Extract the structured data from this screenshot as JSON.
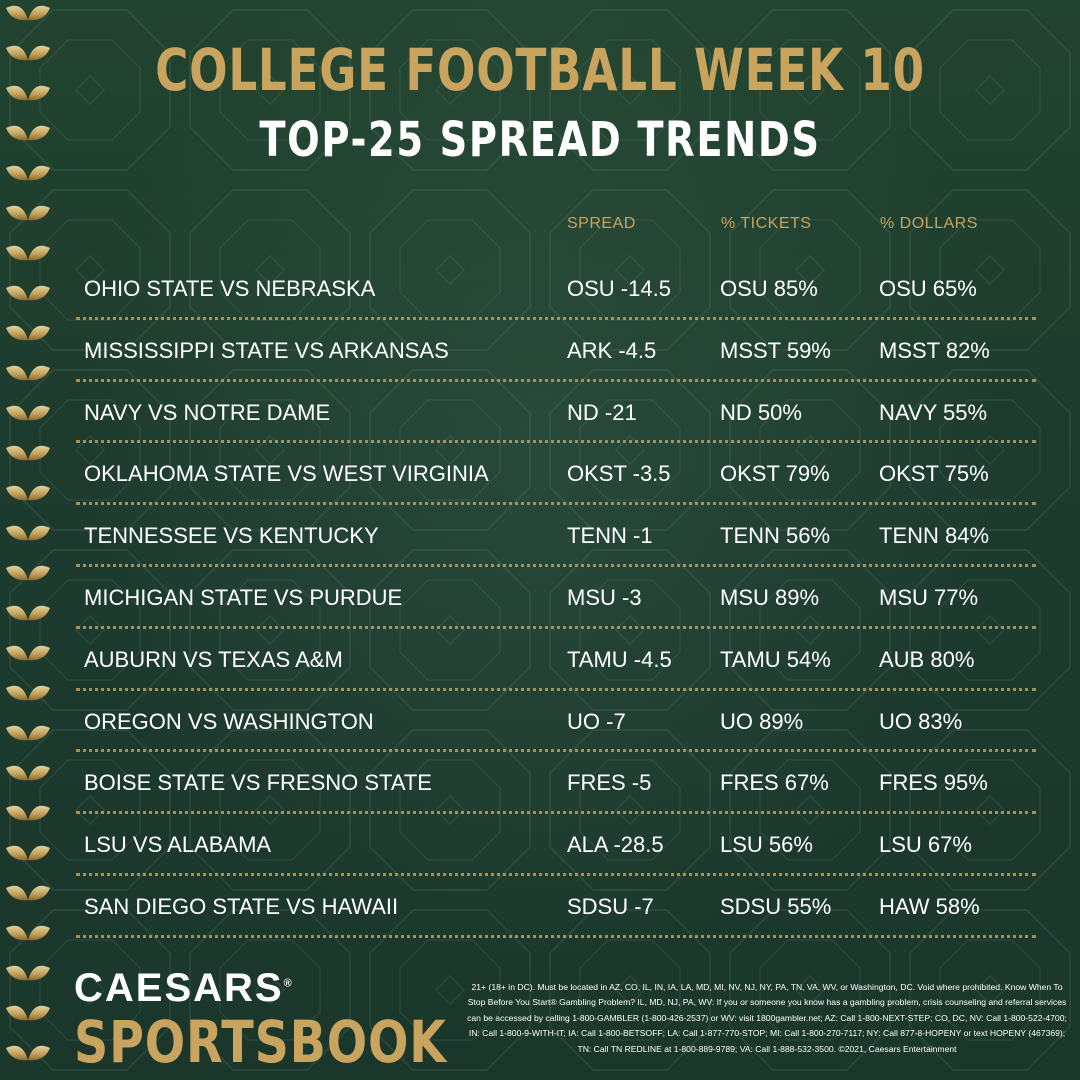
{
  "header": {
    "title": "COLLEGE FOOTBALL WEEK 10",
    "subtitle": "TOP-25 SPREAD TRENDS"
  },
  "columns": {
    "spread": "SPREAD",
    "tickets": "% TICKETS",
    "dollars": "% DOLLARS"
  },
  "rows": [
    {
      "matchup": "OHIO STATE VS NEBRASKA",
      "spread": "OSU -14.5",
      "tickets": "OSU 85%",
      "dollars": "OSU 65%"
    },
    {
      "matchup": "MISSISSIPPI STATE VS ARKANSAS",
      "spread": "ARK -4.5",
      "tickets": "MSST 59%",
      "dollars": "MSST 82%"
    },
    {
      "matchup": "NAVY VS NOTRE DAME",
      "spread": "ND -21",
      "tickets": "ND 50%",
      "dollars": "NAVY 55%"
    },
    {
      "matchup": "OKLAHOMA STATE VS WEST VIRGINIA",
      "spread": "OKST -3.5",
      "tickets": "OKST 79%",
      "dollars": "OKST 75%"
    },
    {
      "matchup": "TENNESSEE VS KENTUCKY",
      "spread": "TENN -1",
      "tickets": "TENN 56%",
      "dollars": "TENN 84%"
    },
    {
      "matchup": "MICHIGAN STATE VS PURDUE",
      "spread": "MSU -3",
      "tickets": "MSU 89%",
      "dollars": "MSU 77%"
    },
    {
      "matchup": "AUBURN VS TEXAS A&M",
      "spread": "TAMU -4.5",
      "tickets": "TAMU 54%",
      "dollars": "AUB 80%"
    },
    {
      "matchup": "OREGON VS WASHINGTON",
      "spread": "UO -7",
      "tickets": "UO 89%",
      "dollars": "UO 83%"
    },
    {
      "matchup": "BOISE STATE VS FRESNO STATE",
      "spread": "FRES -5",
      "tickets": "FRES 67%",
      "dollars": "FRES 95%"
    },
    {
      "matchup": "LSU VS ALABAMA",
      "spread": "ALA -28.5",
      "tickets": "LSU 56%",
      "dollars": "LSU 67%"
    },
    {
      "matchup": "SAN DIEGO STATE VS HAWAII",
      "spread": "SDSU -7",
      "tickets": "SDSU 55%",
      "dollars": "HAW 58%"
    }
  ],
  "brand": {
    "line1": "CAESARS",
    "mark": "®",
    "line2": "SPORTSBOOK"
  },
  "disclaimer": "21+ (18+ in DC). Must be located in AZ, CO, IL, IN, IA, LA, MD, MI, NV, NJ, NY, PA, TN, VA, WV, or Washington, DC. Void where prohibited. Know When To Stop Before You Start® Gambling Problem? IL, MD, NJ, PA, WV: If you or someone you know has a gambling problem, crisis counseling and referral services can be accessed by calling 1-800-GAMBLER (1-800-426-2537) or WV: visit 1800gambler.net; AZ: Call 1-800-NEXT-STEP; CO, DC, NV: Call 1-800-522-4700; IN: Call 1-800-9-WITH-IT; IA: Call 1-800-BETSOFF; LA: Call 1-877-770-STOP; MI: Call 1-800-270-7117; NY: Call 877-8-HOPENY or text HOPENY (467369); TN: Call TN REDLINE at 1-800-889-9789; VA: Call 1-888-532-3500. ©2021, Caesars Entertainment",
  "colors": {
    "background": "#1f3b30",
    "gold": "#c8a45e",
    "text": "#ffffff"
  }
}
